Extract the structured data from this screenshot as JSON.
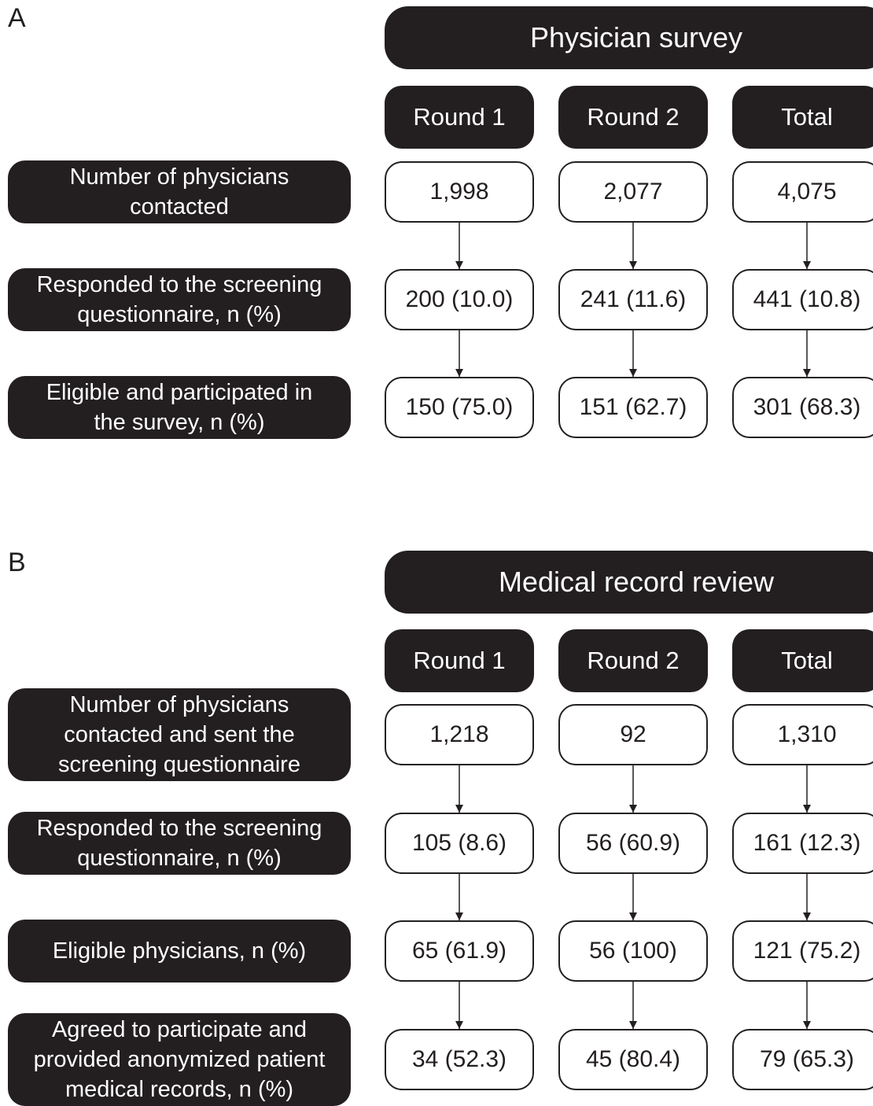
{
  "panel_a": {
    "letter": "A",
    "title": "Physician survey",
    "columns": [
      "Round 1",
      "Round 2",
      "Total"
    ],
    "rows": [
      {
        "label_lines": [
          "Number of physicians",
          "contacted"
        ],
        "values": [
          "1,998",
          "2,077",
          "4,075"
        ]
      },
      {
        "label_lines": [
          "Responded to the screening",
          "questionnaire, n (%)"
        ],
        "values": [
          "200 (10.0)",
          "241 (11.6)",
          "441 (10.8)"
        ]
      },
      {
        "label_lines": [
          "Eligible and participated in",
          "the survey, n (%)"
        ],
        "values": [
          "150 (75.0)",
          "151 (62.7)",
          "301 (68.3)"
        ]
      }
    ]
  },
  "panel_b": {
    "letter": "B",
    "title": "Medical record review",
    "columns": [
      "Round 1",
      "Round 2",
      "Total"
    ],
    "rows": [
      {
        "label_lines": [
          "Number of physicians",
          "contacted and sent the",
          "screening questionnaire"
        ],
        "values": [
          "1,218",
          "92",
          "1,310"
        ]
      },
      {
        "label_lines": [
          "Responded to the screening",
          "questionnaire, n (%)"
        ],
        "values": [
          "105 (8.6)",
          "56 (60.9)",
          "161 (12.3)"
        ]
      },
      {
        "label_lines": [
          "Eligible physicians, n (%)"
        ],
        "values": [
          "65 (61.9)",
          "56 (100)",
          "121 (75.2)"
        ]
      },
      {
        "label_lines": [
          "Agreed to participate and",
          "provided anonymized patient",
          "medical records, n (%)"
        ],
        "values": [
          "34 (52.3)",
          "45 (80.4)",
          "79 (65.3)"
        ]
      }
    ]
  }
}
